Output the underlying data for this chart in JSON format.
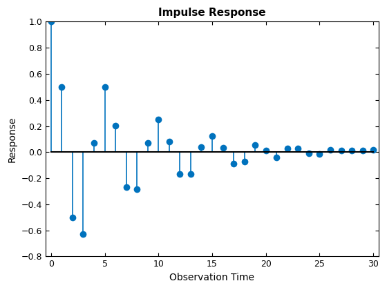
{
  "title": "Impulse Response",
  "xlabel": "Observation Time",
  "ylabel": "Response",
  "x": [
    0,
    1,
    2,
    3,
    4,
    5,
    6,
    7,
    8,
    9,
    10,
    11,
    12,
    13,
    14,
    15,
    16,
    17,
    18,
    19,
    20,
    21,
    22,
    23,
    24,
    25,
    26,
    27,
    28,
    29,
    30
  ],
  "y": [
    1.0,
    0.5,
    -0.5,
    -0.63,
    0.07,
    0.5,
    0.205,
    -0.27,
    -0.285,
    0.07,
    0.25,
    0.083,
    -0.167,
    -0.167,
    0.038,
    0.125,
    0.032,
    -0.09,
    -0.073,
    0.057,
    0.012,
    -0.04,
    0.027,
    0.03,
    -0.01,
    -0.012,
    0.02,
    0.012,
    0.01,
    0.01,
    0.018
  ],
  "line_color": "#0072BD",
  "marker_color": "#0072BD",
  "baseline_color": "#000000",
  "ylim": [
    -0.8,
    1.0
  ],
  "xlim": [
    -0.5,
    30.5
  ],
  "xticks": [
    0,
    5,
    10,
    15,
    20,
    25,
    30
  ],
  "yticks": [
    -0.8,
    -0.6,
    -0.4,
    -0.2,
    0.0,
    0.2,
    0.4,
    0.6,
    0.8,
    1.0
  ],
  "title_fontsize": 11,
  "label_fontsize": 10,
  "tick_fontsize": 9,
  "markersize": 7,
  "linewidth": 1.2,
  "baseline_linewidth": 1.5
}
